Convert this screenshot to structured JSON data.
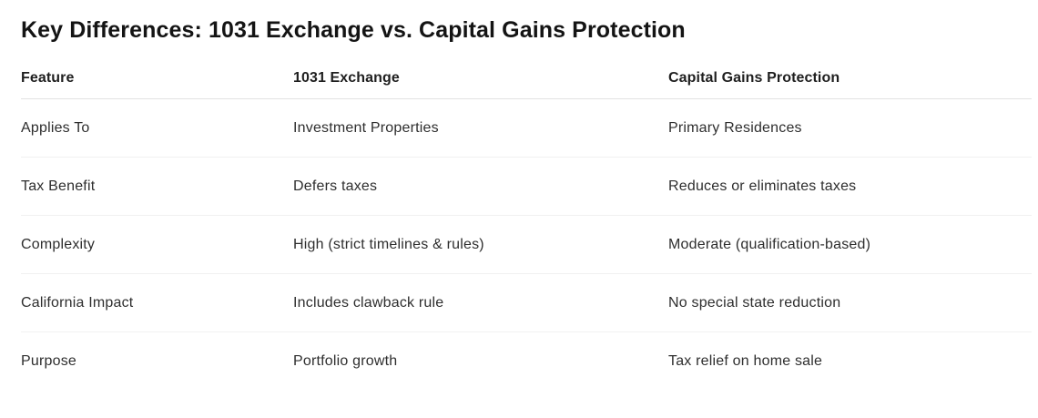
{
  "title": "Key Differences: 1031 Exchange vs. Capital Gains Protection",
  "table": {
    "columns": [
      "Feature",
      "1031 Exchange",
      "Capital Gains Protection"
    ],
    "rows": [
      [
        "Applies To",
        "Investment Properties",
        "Primary Residences"
      ],
      [
        "Tax Benefit",
        "Defers taxes",
        "Reduces or eliminates taxes"
      ],
      [
        "Complexity",
        "High (strict timelines & rules)",
        "Moderate (qualification-based)"
      ],
      [
        "California Impact",
        "Includes clawback rule",
        "No special state reduction"
      ],
      [
        "Purpose",
        "Portfolio growth",
        "Tax relief on home sale"
      ]
    ]
  },
  "colors": {
    "title_text": "#141414",
    "header_text": "#1f1f1f",
    "body_text": "#2e2e2e",
    "header_divider": "#e2e2e2",
    "row_divider": "#f1f1f1",
    "background": "#ffffff"
  }
}
